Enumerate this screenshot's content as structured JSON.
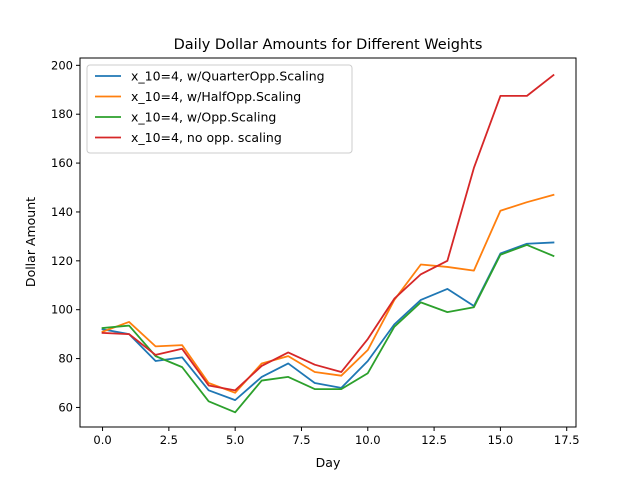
{
  "chart_data": {
    "type": "line",
    "title": "Daily Dollar Amounts for Different Weights",
    "xlabel": "Day",
    "ylabel": "Dollar Amount",
    "xlim": [
      -0.85,
      17.85
    ],
    "ylim": [
      52,
      203
    ],
    "xticks": [
      0.0,
      2.5,
      5.0,
      7.5,
      10.0,
      12.5,
      15.0,
      17.5
    ],
    "xtick_labels": [
      "0.0",
      "2.5",
      "5.0",
      "7.5",
      "10.0",
      "12.5",
      "15.0",
      "17.5"
    ],
    "yticks": [
      60,
      80,
      100,
      120,
      140,
      160,
      180,
      200
    ],
    "ytick_labels": [
      "60",
      "80",
      "100",
      "120",
      "140",
      "160",
      "180",
      "200"
    ],
    "grid": false,
    "legend_position": "top-left",
    "x": [
      0,
      1,
      2,
      3,
      4,
      5,
      6,
      7,
      8,
      9,
      10,
      11,
      12,
      13,
      14,
      15,
      16,
      17
    ],
    "series": [
      {
        "name": "x_10=4, w/QuarterOpp.Scaling",
        "color": "#1f77b4",
        "values": [
          92,
          90,
          79,
          80.5,
          67,
          63,
          72.5,
          78,
          70,
          68,
          79,
          94,
          104,
          108.5,
          101.5,
          123,
          127,
          127.5
        ]
      },
      {
        "name": "x_10=4, w/HalfOpp.Scaling",
        "color": "#ff7f0e",
        "values": [
          91,
          95,
          85,
          85.5,
          70,
          66,
          78,
          81,
          74.5,
          73,
          83.5,
          104,
          118.5,
          117.5,
          116,
          140.5,
          144,
          147
        ]
      },
      {
        "name": "x_10=4, w/Opp.Scaling",
        "color": "#2ca02c",
        "values": [
          92.5,
          93.5,
          81,
          76.5,
          62.5,
          58,
          71,
          72.5,
          67.5,
          67.5,
          74,
          93,
          103,
          99,
          101,
          122.5,
          126.5,
          122
        ]
      },
      {
        "name": "x_10=4, no opp. scaling",
        "color": "#d62728",
        "values": [
          90.5,
          90,
          81.5,
          84,
          69,
          67,
          77,
          82.5,
          77.5,
          74.5,
          88,
          104.5,
          114.5,
          120,
          158,
          187.5,
          187.5,
          196
        ]
      }
    ]
  }
}
